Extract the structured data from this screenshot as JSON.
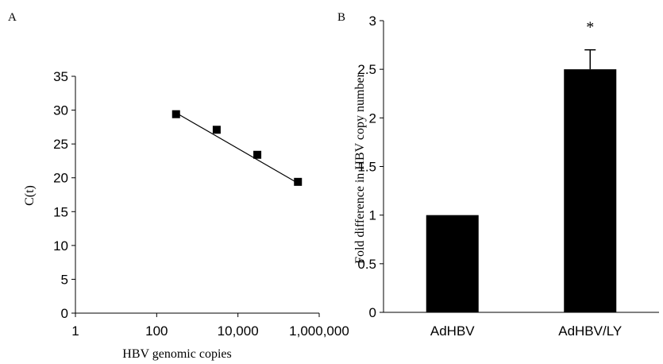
{
  "chart_data": [
    {
      "panel_label": "A",
      "type": "scatter",
      "xscale": "log",
      "xlabel": "HBV genomic copies",
      "ylabel": "C(t)",
      "xlim": [
        1,
        1000000
      ],
      "ylim": [
        0,
        35
      ],
      "x_ticks": [
        1,
        100,
        10000,
        1000000
      ],
      "x_tick_labels": [
        "1",
        "100",
        "10,000",
        "1,000,000"
      ],
      "y_ticks": [
        0,
        5,
        10,
        15,
        20,
        25,
        30,
        35
      ],
      "y_tick_labels": [
        "0",
        "5",
        "10",
        "15",
        "20",
        "25",
        "30",
        "35"
      ],
      "series": [
        {
          "x": [
            300,
            3000,
            30000,
            300000
          ],
          "y": [
            29.4,
            27.1,
            23.4,
            19.4
          ]
        }
      ],
      "trendline": {
        "x": [
          300,
          300000
        ],
        "y": [
          29.6,
          19.2
        ]
      }
    },
    {
      "panel_label": "B",
      "type": "bar",
      "categories": [
        "AdHBV",
        "AdHBV/LY"
      ],
      "values": [
        1.0,
        2.5
      ],
      "error": [
        0,
        0.2
      ],
      "ylabel": "Fold difference in HBV copy number",
      "ylim": [
        0,
        3
      ],
      "y_ticks": [
        0,
        0.5,
        1,
        1.5,
        2,
        2.5,
        3
      ],
      "y_tick_labels": [
        "0",
        "0.5",
        "1",
        "1.5",
        "2",
        "2.5",
        "3"
      ],
      "annotation": "*",
      "bar_color": "#000000"
    }
  ]
}
